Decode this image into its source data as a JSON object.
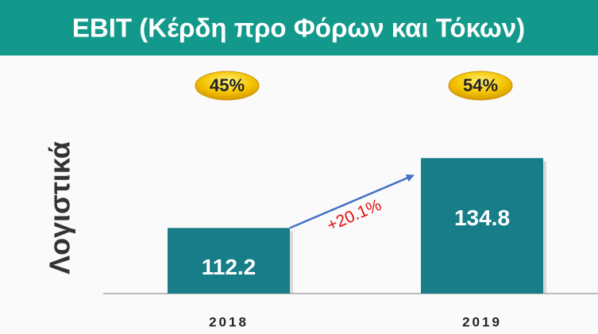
{
  "chart_data": {
    "type": "bar",
    "title": "EBIT (Κέρδη προ Φόρων και Τόκων)",
    "y_label": "Λογιστικά",
    "categories": [
      "2018",
      "2019"
    ],
    "values": [
      112.2,
      134.8
    ],
    "color": "#177e89",
    "ylim": [
      91,
      140
    ],
    "badges": [
      "45%",
      "54%"
    ],
    "change_label": "+20.1%",
    "grid": false
  }
}
